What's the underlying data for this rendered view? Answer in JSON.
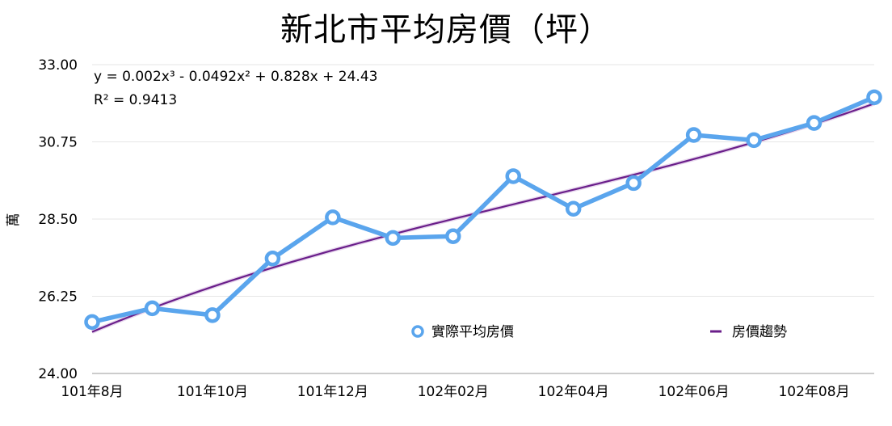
{
  "chart_data": {
    "type": "line",
    "title": "新北市平均房價（坪）",
    "xlabel": "",
    "ylabel": "萬",
    "ylim": [
      24.0,
      33.0
    ],
    "y_ticks": [
      "24.00",
      "26.25",
      "28.50",
      "30.75",
      "33.00"
    ],
    "y_tick_values": [
      24.0,
      26.25,
      28.5,
      30.75,
      33.0
    ],
    "x_ticks": [
      "101年8月",
      "101年10月",
      "101年12月",
      "102年02月",
      "102年04月",
      "102年06月",
      "102年08月"
    ],
    "x_tick_indices": [
      0,
      2,
      4,
      6,
      8,
      10,
      12
    ],
    "grid": true,
    "legend_position": "bottom-center-right",
    "series": [
      {
        "name": "實際平均房價",
        "color": "#5aa5ed",
        "values": [
          25.5,
          25.9,
          25.7,
          27.35,
          28.55,
          27.95,
          28.0,
          29.75,
          28.8,
          29.55,
          30.95,
          30.8,
          31.3,
          32.05
        ]
      }
    ],
    "trendline": {
      "name": "房價趨勢",
      "color": "#6a1e8a",
      "type": "polynomial",
      "coefficients": [
        0.002,
        -0.0492,
        0.828,
        24.43
      ],
      "equation": "y = 0.002x³ - 0.0492x² + 0.828x + 24.43",
      "r_squared": "R² = 0.9413"
    }
  }
}
